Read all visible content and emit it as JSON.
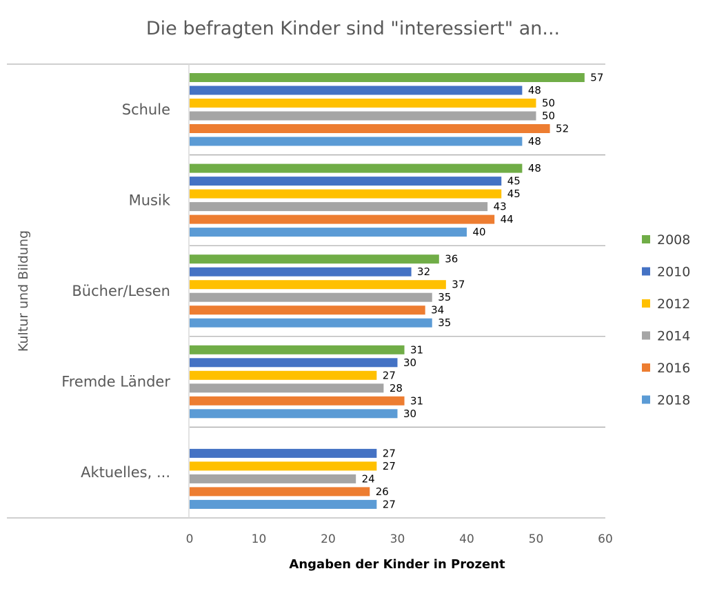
{
  "chart_data": {
    "type": "bar",
    "orientation": "horizontal",
    "title": "Die befragten Kinder sind \"interessiert\" an...",
    "xlabel": "Angaben der Kinder in Prozent",
    "ylabel": "Kultur und Bildung",
    "categories": [
      "Schule",
      "Musik",
      "Bücher/Lesen",
      "Fremde Länder",
      "Aktuelles, ..."
    ],
    "xlim": [
      0,
      60
    ],
    "xticks": [
      "0",
      "10",
      "20",
      "30",
      "40",
      "50",
      "60"
    ],
    "grid": false,
    "legend_position": "right",
    "series": [
      {
        "name": "2008",
        "color": "#70AD47",
        "values": [
          57,
          48,
          36,
          31,
          null
        ]
      },
      {
        "name": "2010",
        "color": "#4472C4",
        "values": [
          48,
          45,
          32,
          30,
          27
        ]
      },
      {
        "name": "2012",
        "color": "#FFC000",
        "values": [
          50,
          45,
          37,
          27,
          27
        ]
      },
      {
        "name": "2014",
        "color": "#A5A5A5",
        "values": [
          50,
          43,
          35,
          28,
          24
        ]
      },
      {
        "name": "2016",
        "color": "#ED7D31",
        "values": [
          52,
          44,
          34,
          31,
          26
        ]
      },
      {
        "name": "2018",
        "color": "#5B9BD5",
        "values": [
          48,
          40,
          35,
          30,
          27
        ]
      }
    ]
  }
}
